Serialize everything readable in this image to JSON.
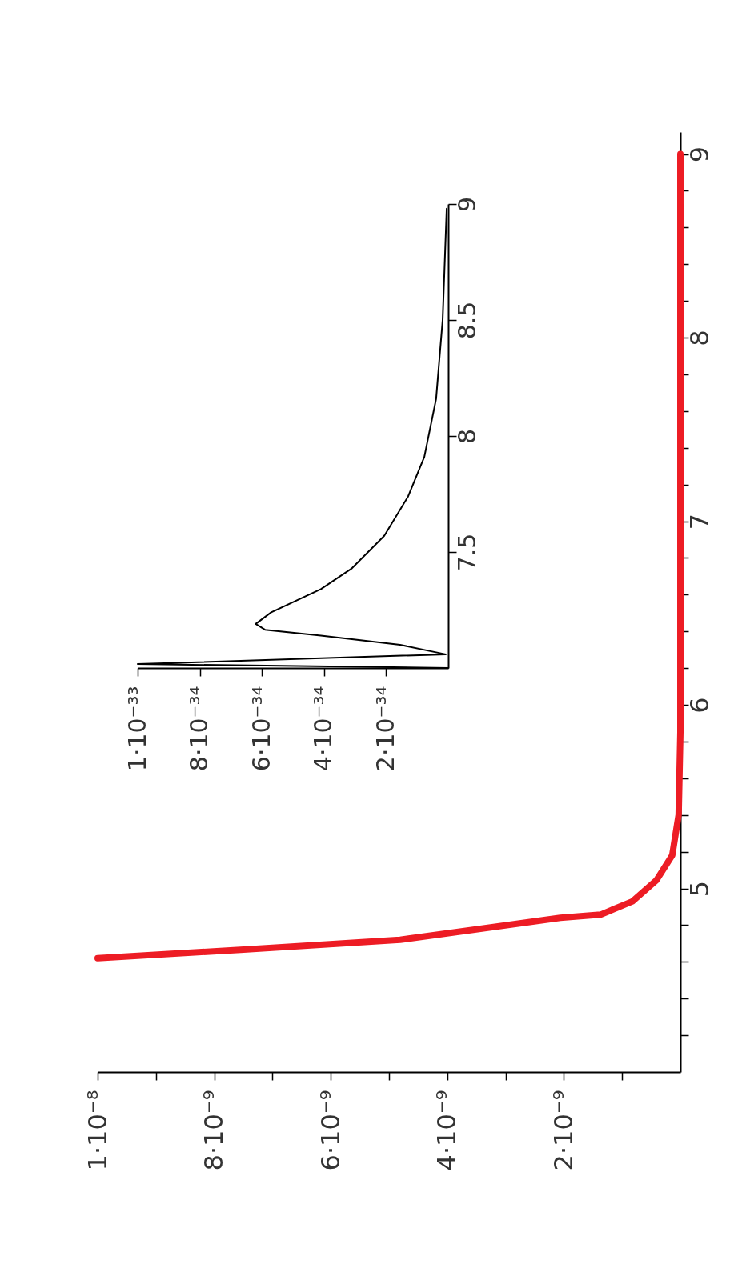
{
  "chart_data": [
    {
      "type": "line",
      "xlim": [
        1e-08,
        0
      ],
      "ylim": [
        4,
        9.12
      ],
      "yticks": [
        {
          "value": 4.2,
          "label": null
        },
        {
          "value": 4.4,
          "label": null
        },
        {
          "value": 4.6,
          "label": null
        },
        {
          "value": 4.8,
          "label": null
        },
        5,
        {
          "value": 5.2,
          "label": null
        },
        {
          "value": 5.4,
          "label": null
        },
        {
          "value": 5.6,
          "label": null
        },
        {
          "value": 5.8,
          "label": null
        },
        6,
        {
          "value": 6.2,
          "label": null
        },
        {
          "value": 6.4,
          "label": null
        },
        {
          "value": 6.6,
          "label": null
        },
        {
          "value": 6.8,
          "label": null
        },
        7,
        {
          "value": 7.2,
          "label": null
        },
        {
          "value": 7.4,
          "label": null
        },
        {
          "value": 7.6,
          "label": null
        },
        {
          "value": 7.8,
          "label": null
        },
        8,
        {
          "value": 8.2,
          "label": null
        },
        {
          "value": 8.4,
          "label": null
        },
        {
          "value": 8.6,
          "label": null
        },
        {
          "value": 8.8,
          "label": null
        },
        9
      ],
      "xticks": [
        {
          "value": 1e-09,
          "label": null
        },
        {
          "value": 2e-09,
          "label": "2·10⁻⁹"
        },
        {
          "value": 3e-09,
          "label": null
        },
        {
          "value": 4e-09,
          "label": "4·10⁻⁹"
        },
        {
          "value": 5e-09,
          "label": null
        },
        {
          "value": 6e-09,
          "label": "6·10⁻⁹"
        },
        {
          "value": 7e-09,
          "label": null
        },
        {
          "value": 8e-09,
          "label": "8·10⁻⁹"
        },
        {
          "value": 9e-09,
          "label": null
        },
        {
          "value": 1e-08,
          "label": "1·10⁻⁸"
        }
      ],
      "grid": false,
      "series": [
        {
          "color": "#ed1c24",
          "x": [
            1e-08,
            7.55e-09,
            4.81e-09,
            3.43e-09,
            2.06e-09,
            1.37e-09,
            8.2e-10,
            4.1e-10,
            1.4e-10,
            3e-11,
            0,
            0
          ],
          "values": [
            4.62,
            4.666,
            4.72,
            4.78,
            4.84,
            4.857,
            4.93,
            5.045,
            5.18,
            5.4,
            5.85,
            9.0
          ]
        }
      ]
    },
    {
      "type": "line",
      "xlim": [
        1e-33,
        0
      ],
      "ylim": [
        7,
        9
      ],
      "yticks": [
        7.5,
        8,
        8.5,
        9
      ],
      "xticks": [
        {
          "value": 2e-34,
          "label": "2·10⁻³⁴"
        },
        {
          "value": 4e-34,
          "label": "4·10⁻³⁴"
        },
        {
          "value": 6e-34,
          "label": "6·10⁻³⁴"
        },
        {
          "value": 8e-34,
          "label": "8·10⁻³⁴"
        },
        {
          "value": 1e-33,
          "label": "1·10⁻³³"
        }
      ],
      "grid": false,
      "series": [
        {
          "color": "#000000",
          "x": [
            0,
            1e-33,
            8e-36,
            1.55e-34,
            4.1e-34,
            5.9e-34,
            6.2e-34,
            5.7e-34,
            4.1e-34,
            3.1e-34,
            2.06e-34,
            1.29e-34,
            7.7e-35,
            3.9e-35,
            1.8e-35,
            5e-36
          ],
          "values": [
            7.0,
            7.017,
            7.059,
            7.1,
            7.14,
            7.165,
            7.19,
            7.24,
            7.34,
            7.43,
            7.57,
            7.74,
            7.91,
            8.16,
            8.5,
            8.98
          ]
        }
      ]
    }
  ]
}
